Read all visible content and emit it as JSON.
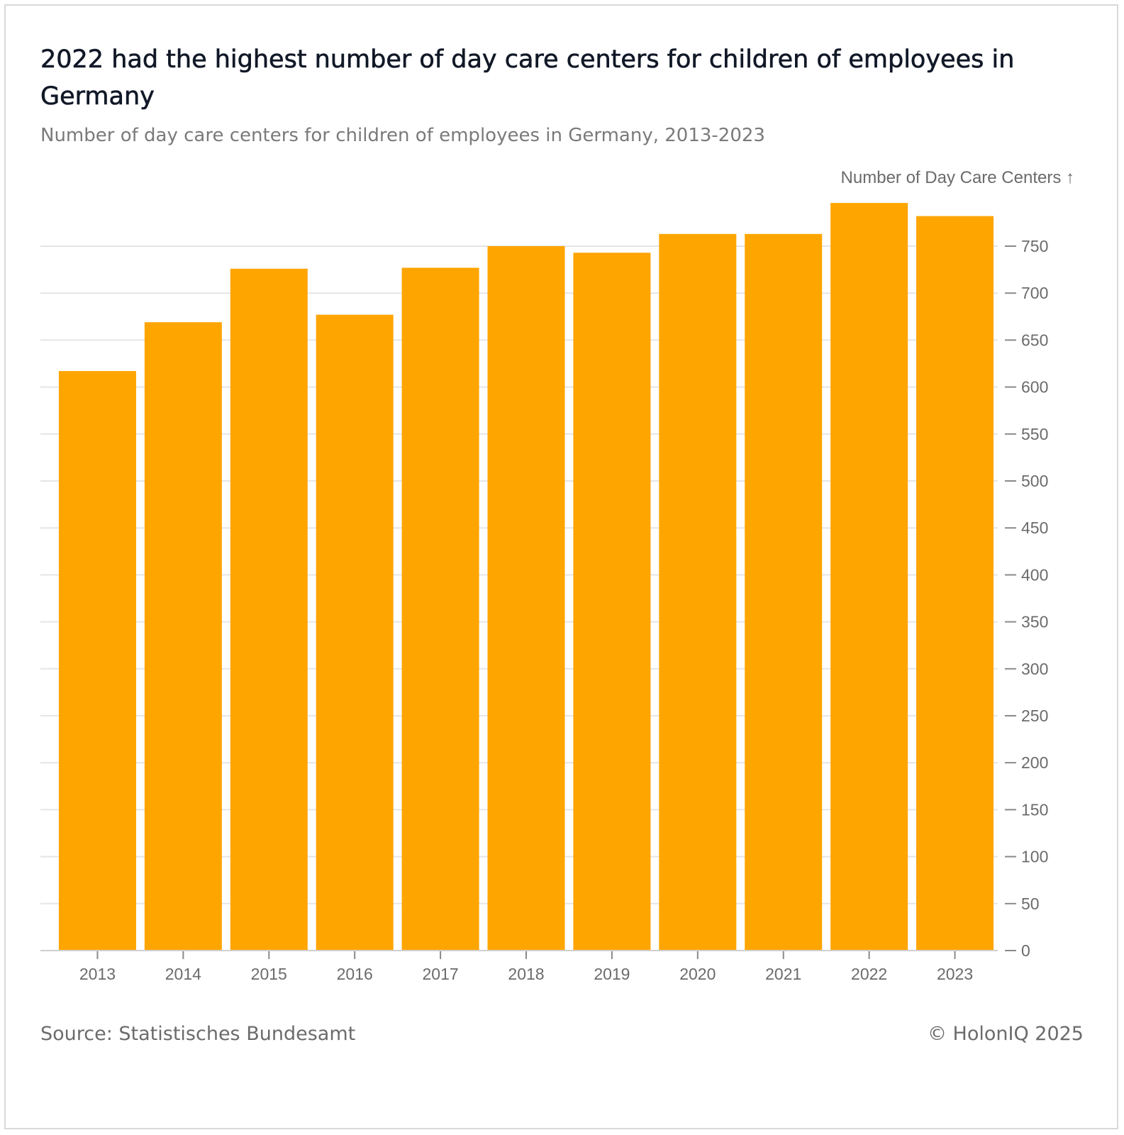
{
  "header": {
    "title": "2022 had the highest number of day care centers for children of employees in Germany",
    "subtitle": "Number of day care centers for children of employees in Germany, 2013-2023"
  },
  "footer": {
    "source": "Source: Statistisches Bundesamt",
    "credit": "© HolonIQ 2025"
  },
  "colors": {
    "bar": "#FFA500",
    "grid": "#e5e5e5",
    "axis_text": "#6b6b6b"
  },
  "chart_data": {
    "type": "bar",
    "title": "2022 had the highest number of day care centers for children of employees in Germany",
    "subtitle": "Number of day care centers for children of employees in Germany, 2013-2023",
    "categories": [
      "2013",
      "2014",
      "2015",
      "2016",
      "2017",
      "2018",
      "2019",
      "2020",
      "2021",
      "2022",
      "2023"
    ],
    "values": [
      617,
      669,
      726,
      677,
      727,
      750,
      743,
      763,
      763,
      796,
      782
    ],
    "xlabel": "",
    "ylabel": "Number of Day Care Centers ↑",
    "ylim": [
      0,
      800
    ],
    "yticks": [
      0,
      50,
      100,
      150,
      200,
      250,
      300,
      350,
      400,
      450,
      500,
      550,
      600,
      650,
      700,
      750
    ],
    "ytick_labels": [
      "0",
      "50",
      "100",
      "150",
      "200",
      "250",
      "300",
      "350",
      "400",
      "450",
      "500",
      "550",
      "600",
      "650",
      "700",
      "750"
    ],
    "y_axis_position": "right",
    "grid": true,
    "legend": "none"
  }
}
